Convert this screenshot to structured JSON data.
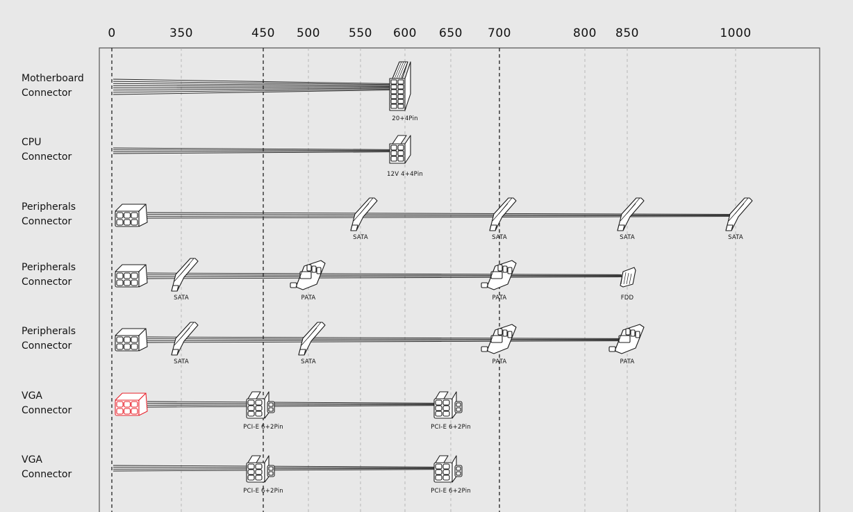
{
  "axis": {
    "ticks": [
      "0",
      "350",
      "450",
      "500",
      "550",
      "600",
      "650",
      "700",
      "800",
      "850",
      "1000"
    ],
    "major_ticks": [
      "0",
      "450",
      "700"
    ]
  },
  "colors": {
    "highlight": "#e8202a",
    "line": "#222222",
    "grid": "#aaaaaa",
    "background": "#e8e8e8",
    "frame": "#555555"
  },
  "rows": [
    {
      "label_line1": "Motherboard",
      "label_line2": "Connector",
      "start": "none",
      "connectors": [
        {
          "at": "600",
          "type": "motherboard",
          "label": "20+4Pin"
        }
      ]
    },
    {
      "label_line1": "CPU",
      "label_line2": "Connector",
      "start": "none",
      "connectors": [
        {
          "at": "600",
          "type": "cpu",
          "label": "12V 4+4Pin"
        }
      ]
    },
    {
      "label_line1": "Peripherals",
      "label_line2": "Connector",
      "start": "modular",
      "connectors": [
        {
          "at": "550",
          "type": "sata",
          "label": "SATA"
        },
        {
          "at": "700",
          "type": "sata",
          "label": "SATA"
        },
        {
          "at": "850",
          "type": "sata",
          "label": "SATA"
        },
        {
          "at": "1000",
          "type": "sata",
          "label": "SATA"
        }
      ]
    },
    {
      "label_line1": "Peripherals",
      "label_line2": "Connector",
      "start": "modular",
      "connectors": [
        {
          "at": "350",
          "type": "sata",
          "label": "SATA"
        },
        {
          "at": "500",
          "type": "pata",
          "label": "PATA"
        },
        {
          "at": "700",
          "type": "pata",
          "label": "PATA"
        },
        {
          "at": "850",
          "type": "fdd",
          "label": "FDD"
        }
      ]
    },
    {
      "label_line1": "Peripherals",
      "label_line2": "Connector",
      "start": "modular",
      "connectors": [
        {
          "at": "350",
          "type": "sata",
          "label": "SATA"
        },
        {
          "at": "500",
          "type": "sata",
          "label": "SATA"
        },
        {
          "at": "700",
          "type": "pata",
          "label": "PATA"
        },
        {
          "at": "850",
          "type": "pata",
          "label": "PATA"
        }
      ]
    },
    {
      "label_line1": "VGA",
      "label_line2": "Connector",
      "start": "modular-highlight",
      "connectors": [
        {
          "at": "450",
          "type": "pcie",
          "label": "PCI-E 6+2Pin"
        },
        {
          "at": "650",
          "type": "pcie",
          "label": "PCI-E 6+2Pin"
        }
      ]
    },
    {
      "label_line1": "VGA",
      "label_line2": "Connector",
      "start": "none",
      "connectors": [
        {
          "at": "450",
          "type": "pcie",
          "label": "PCI-E 6+2Pin"
        },
        {
          "at": "650",
          "type": "pcie",
          "label": "PCI-E 6+2Pin"
        }
      ]
    }
  ]
}
